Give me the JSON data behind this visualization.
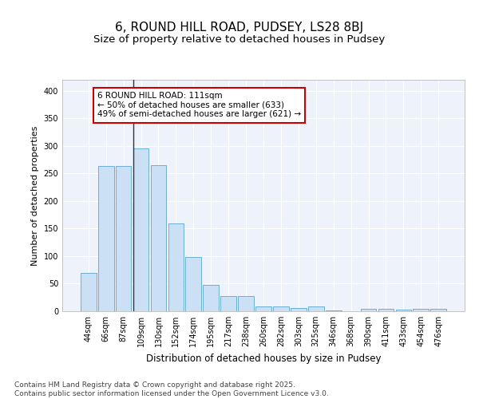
{
  "title": "6, ROUND HILL ROAD, PUDSEY, LS28 8BJ",
  "subtitle": "Size of property relative to detached houses in Pudsey",
  "xlabel": "Distribution of detached houses by size in Pudsey",
  "ylabel": "Number of detached properties",
  "categories": [
    "44sqm",
    "66sqm",
    "87sqm",
    "109sqm",
    "130sqm",
    "152sqm",
    "174sqm",
    "195sqm",
    "217sqm",
    "238sqm",
    "260sqm",
    "282sqm",
    "303sqm",
    "325sqm",
    "346sqm",
    "368sqm",
    "390sqm",
    "411sqm",
    "433sqm",
    "454sqm",
    "476sqm"
  ],
  "values": [
    70,
    263,
    263,
    295,
    265,
    160,
    99,
    48,
    27,
    27,
    9,
    8,
    6,
    8,
    2,
    0,
    4,
    4,
    3,
    4,
    4
  ],
  "bar_color": "#cce0f5",
  "bar_edge_color": "#6aaed6",
  "background_color": "#eef2fa",
  "grid_color": "#ffffff",
  "annotation_box_text": "6 ROUND HILL ROAD: 111sqm\n← 50% of detached houses are smaller (633)\n49% of semi-detached houses are larger (621) →",
  "annotation_box_color": "#cc0000",
  "vline_x_index": 3,
  "vline_color": "#333333",
  "ylim": [
    0,
    420
  ],
  "yticks": [
    0,
    50,
    100,
    150,
    200,
    250,
    300,
    350,
    400
  ],
  "footer_text": "Contains HM Land Registry data © Crown copyright and database right 2025.\nContains public sector information licensed under the Open Government Licence v3.0.",
  "title_fontsize": 11,
  "subtitle_fontsize": 9.5,
  "xlabel_fontsize": 8.5,
  "ylabel_fontsize": 8,
  "tick_fontsize": 7,
  "annotation_fontsize": 7.5,
  "footer_fontsize": 6.5
}
